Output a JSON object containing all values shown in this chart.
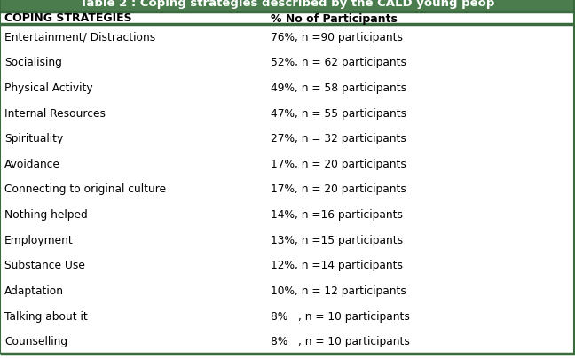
{
  "title": "Table 2 : Coping strategies described by the CALD young peop",
  "col1_header": "COPING STRATEGIES",
  "col2_header": "% No of Participants",
  "rows": [
    [
      "Entertainment/ Distractions",
      "76%, n =90 participants"
    ],
    [
      "Socialising",
      "52%, n = 62 participants"
    ],
    [
      "Physical Activity",
      "49%, n = 58 participants"
    ],
    [
      "Internal Resources",
      "47%, n = 55 participants"
    ],
    [
      "Spirituality",
      "27%, n = 32 participants"
    ],
    [
      "Avoidance",
      "17%, n = 20 participants"
    ],
    [
      "Connecting to original culture",
      "17%, n = 20 participants"
    ],
    [
      "Nothing helped",
      "14%, n =16 participants"
    ],
    [
      "Employment",
      "13%, n =15 participants"
    ],
    [
      "Substance Use",
      "12%, n =14 participants"
    ],
    [
      "Adaptation",
      "10%, n = 12 participants"
    ],
    [
      "Talking about it",
      "8%   , n = 10 participants"
    ],
    [
      "Counselling",
      "8%   , n = 10 participants"
    ]
  ],
  "title_bg": "#4a7c4e",
  "title_color": "#ffffff",
  "header_bg": "#ffffff",
  "header_color": "#000000",
  "row_bg": "#ffffff",
  "row_color": "#000000",
  "border_color": "#3a6b3e",
  "title_fontsize": 9.5,
  "header_fontsize": 9.0,
  "row_fontsize": 8.8,
  "fig_width": 6.48,
  "fig_height": 4.06,
  "dpi": 100
}
